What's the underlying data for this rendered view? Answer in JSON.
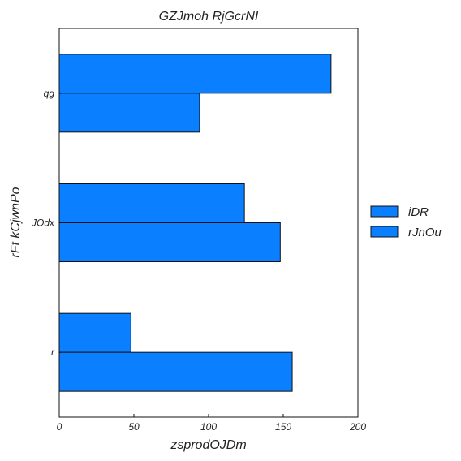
{
  "chart_data": {
    "type": "bar",
    "orientation": "horizontal",
    "title": "GZJmoh RjGcrNI",
    "xlabel": "zsprodOJDm",
    "ylabel": "rFt kCjwnPo",
    "categories": [
      "r",
      "JOdx",
      "qg"
    ],
    "series": [
      {
        "name": "iDR",
        "values": [
          48,
          124,
          182
        ],
        "color": "#0a7fff"
      },
      {
        "name": "rJnOu",
        "values": [
          156,
          148,
          94
        ],
        "color": "#0a7fff"
      }
    ],
    "xlim": [
      0,
      200
    ],
    "xticks": [
      0,
      50,
      100,
      150,
      200
    ],
    "grid": false,
    "legend_position": "right"
  }
}
